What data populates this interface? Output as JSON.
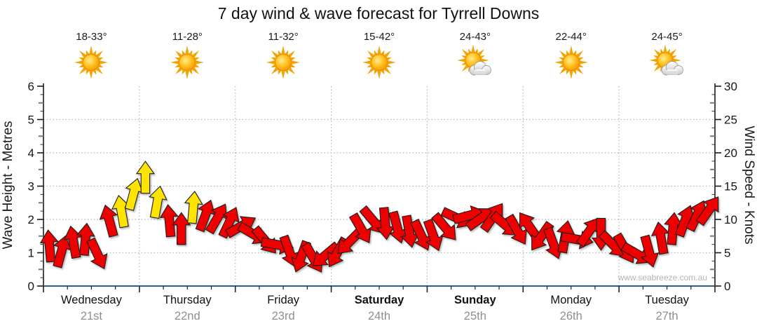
{
  "title": "7 day wind & wave forecast for Tyrrell Downs",
  "watermark": "www.seabreeze.com.au",
  "colors": {
    "arrow_red": "#ee0400",
    "arrow_yellow": "#ffe400",
    "arrow_outline": "#1c1c1c",
    "axis_black": "#1a1a1a",
    "axis_bottom_blue": "#2e5f8c",
    "gridline": "#b5b5b5",
    "tick_text": "#16161d",
    "day_text": "#111111",
    "date_text": "#8e8e8e",
    "watermark_text": "#b4b4b4",
    "sun_ray": "#f5a300",
    "sun_core": "#ffb300",
    "cloud": "#e4e4e4"
  },
  "left_axis": {
    "label": "Wave Height - Metres",
    "ticks": [
      0,
      1,
      2,
      3,
      4,
      5,
      6
    ]
  },
  "right_axis": {
    "label": "Wind Speed - Knots",
    "ticks": [
      0,
      5,
      10,
      15,
      20,
      25,
      30
    ]
  },
  "days": [
    {
      "name": "Wednesday",
      "date": "21st",
      "temp": "18-33°",
      "icon": "sunny",
      "bold": false
    },
    {
      "name": "Thursday",
      "date": "22nd",
      "temp": "11-28°",
      "icon": "sunny",
      "bold": false
    },
    {
      "name": "Friday",
      "date": "23rd",
      "temp": "11-32°",
      "icon": "sunny",
      "bold": false
    },
    {
      "name": "Saturday",
      "date": "24th",
      "temp": "15-42°",
      "icon": "sunny",
      "bold": true
    },
    {
      "name": "Sunday",
      "date": "25th",
      "temp": "24-43°",
      "icon": "partly-cloudy",
      "bold": true
    },
    {
      "name": "Monday",
      "date": "26th",
      "temp": "22-44°",
      "icon": "sunny",
      "bold": false
    },
    {
      "name": "Tuesday",
      "date": "27th",
      "temp": "24-45°",
      "icon": "partly-cloudy",
      "bold": false
    }
  ],
  "chart_data": {
    "type": "wind-arrows",
    "title": "7 day wind & wave forecast for Tyrrell Downs",
    "x": "56 samples, 8 per day (3-hourly), Wednesday 21st to Tuesday 27th",
    "y_left": {
      "label": "Wave Height - Metres",
      "range": [
        0,
        6
      ],
      "gridlines_at": [
        1,
        2,
        3,
        4,
        5
      ]
    },
    "y_right": {
      "label": "Wind Speed - Knots",
      "range": [
        0,
        30
      ],
      "gridlines_at": [
        5,
        10,
        15,
        20,
        25
      ]
    },
    "note": "arrow vertical position = wind speed in knots (right axis); dir = degrees clockwise from up; color red below ~11kn, yellow for the stronger Wed/Thu winds",
    "arrows": [
      {
        "speed": 6.0,
        "dir": -5,
        "color": "red"
      },
      {
        "speed": 5.2,
        "dir": 15,
        "color": "red"
      },
      {
        "speed": 6.6,
        "dir": -10,
        "color": "red"
      },
      {
        "speed": 7.0,
        "dir": 5,
        "color": "red"
      },
      {
        "speed": 4.8,
        "dir": 155,
        "color": "red"
      },
      {
        "speed": 9.8,
        "dir": -15,
        "color": "red"
      },
      {
        "speed": 11.2,
        "dir": -10,
        "color": "yellow"
      },
      {
        "speed": 13.8,
        "dir": 15,
        "color": "yellow"
      },
      {
        "speed": 16.3,
        "dir": 0,
        "color": "yellow"
      },
      {
        "speed": 12.6,
        "dir": 10,
        "color": "yellow"
      },
      {
        "speed": 9.8,
        "dir": -5,
        "color": "red"
      },
      {
        "speed": 8.6,
        "dir": 0,
        "color": "red"
      },
      {
        "speed": 11.8,
        "dir": 5,
        "color": "yellow"
      },
      {
        "speed": 10.6,
        "dir": 20,
        "color": "red"
      },
      {
        "speed": 10.2,
        "dir": 30,
        "color": "red"
      },
      {
        "speed": 9.6,
        "dir": 25,
        "color": "red"
      },
      {
        "speed": 9.0,
        "dir": 60,
        "color": "red"
      },
      {
        "speed": 7.8,
        "dir": 120,
        "color": "red"
      },
      {
        "speed": 6.8,
        "dir": 140,
        "color": "red"
      },
      {
        "speed": 6.2,
        "dir": 100,
        "color": "red"
      },
      {
        "speed": 5.2,
        "dir": 160,
        "color": "red"
      },
      {
        "speed": 4.4,
        "dir": 200,
        "color": "red"
      },
      {
        "speed": 4.2,
        "dir": 150,
        "color": "red"
      },
      {
        "speed": 4.6,
        "dir": 230,
        "color": "red"
      },
      {
        "speed": 5.0,
        "dir": 210,
        "color": "red"
      },
      {
        "speed": 6.6,
        "dir": 225,
        "color": "red"
      },
      {
        "speed": 8.6,
        "dir": 150,
        "color": "red"
      },
      {
        "speed": 9.8,
        "dir": 140,
        "color": "red"
      },
      {
        "speed": 9.4,
        "dir": 175,
        "color": "red"
      },
      {
        "speed": 8.8,
        "dir": 165,
        "color": "red"
      },
      {
        "speed": 8.2,
        "dir": 170,
        "color": "red"
      },
      {
        "speed": 7.6,
        "dir": 155,
        "color": "red"
      },
      {
        "speed": 7.6,
        "dir": 160,
        "color": "red"
      },
      {
        "speed": 8.8,
        "dir": 140,
        "color": "red"
      },
      {
        "speed": 10.2,
        "dir": 115,
        "color": "red"
      },
      {
        "speed": 10.6,
        "dir": 75,
        "color": "red"
      },
      {
        "speed": 10.2,
        "dir": 55,
        "color": "red"
      },
      {
        "speed": 10.4,
        "dir": 35,
        "color": "red"
      },
      {
        "speed": 9.2,
        "dir": 130,
        "color": "red"
      },
      {
        "speed": 8.4,
        "dir": 150,
        "color": "red"
      },
      {
        "speed": 9.0,
        "dir": -35,
        "color": "red"
      },
      {
        "speed": 7.4,
        "dir": 215,
        "color": "red"
      },
      {
        "speed": 6.4,
        "dir": 160,
        "color": "red"
      },
      {
        "speed": 7.4,
        "dir": 10,
        "color": "red"
      },
      {
        "speed": 7.0,
        "dir": 100,
        "color": "red"
      },
      {
        "speed": 8.2,
        "dir": 35,
        "color": "red"
      },
      {
        "speed": 7.8,
        "dir": 180,
        "color": "red"
      },
      {
        "speed": 6.2,
        "dir": 135,
        "color": "red"
      },
      {
        "speed": 5.6,
        "dir": 150,
        "color": "red"
      },
      {
        "speed": 4.8,
        "dir": 120,
        "color": "red"
      },
      {
        "speed": 5.2,
        "dir": 165,
        "color": "red"
      },
      {
        "speed": 7.2,
        "dir": -10,
        "color": "red"
      },
      {
        "speed": 8.6,
        "dir": 5,
        "color": "red"
      },
      {
        "speed": 9.8,
        "dir": 20,
        "color": "red"
      },
      {
        "speed": 10.6,
        "dir": 25,
        "color": "red"
      },
      {
        "speed": 11.4,
        "dir": 35,
        "color": "red"
      }
    ]
  }
}
